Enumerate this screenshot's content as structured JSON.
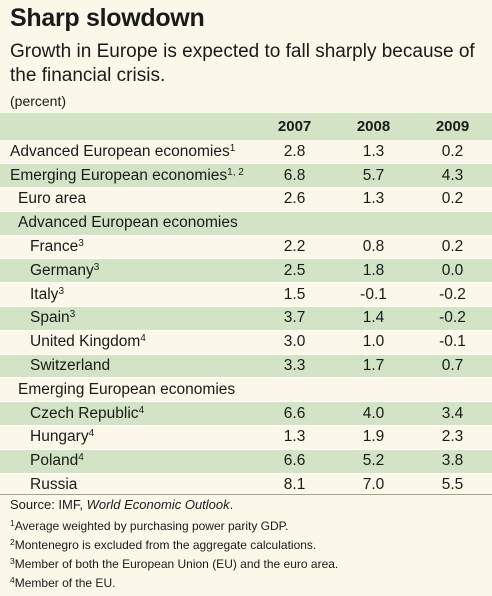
{
  "title": "Sharp slowdown",
  "subtitle": "Growth in Europe is expected to fall sharply because of the financial crisis.",
  "unit": "(percent)",
  "chart_data": {
    "type": "table",
    "columns": [
      "2007",
      "2008",
      "2009"
    ],
    "rows": [
      {
        "label": "Advanced European economies",
        "sup": "1",
        "values": [
          "2.8",
          "1.3",
          "0.2"
        ]
      },
      {
        "label": "Emerging European economies",
        "sup": "1, 2",
        "values": [
          "6.8",
          "5.7",
          "4.3"
        ]
      },
      {
        "label": "Euro area",
        "sup": "",
        "values": [
          "2.6",
          "1.3",
          "0.2"
        ]
      },
      {
        "label": "Advanced European economies",
        "sup": "",
        "values": [
          "",
          "",
          ""
        ]
      },
      {
        "label": "France",
        "sup": "3",
        "values": [
          "2.2",
          "0.8",
          "0.2"
        ]
      },
      {
        "label": "Germany",
        "sup": "3",
        "values": [
          "2.5",
          "1.8",
          "0.0"
        ]
      },
      {
        "label": "Italy",
        "sup": "3",
        "values": [
          "1.5",
          "-0.1",
          "-0.2"
        ]
      },
      {
        "label": "Spain",
        "sup": "3",
        "values": [
          "3.7",
          "1.4",
          "-0.2"
        ]
      },
      {
        "label": "United Kingdom",
        "sup": "4",
        "values": [
          "3.0",
          "1.0",
          "-0.1"
        ]
      },
      {
        "label": "Switzerland",
        "sup": "",
        "values": [
          "3.3",
          "1.7",
          "0.7"
        ]
      },
      {
        "label": "Emerging European economies",
        "sup": "",
        "values": [
          "",
          "",
          ""
        ]
      },
      {
        "label": "Czech Republic",
        "sup": "4",
        "values": [
          "6.6",
          "4.0",
          "3.4"
        ]
      },
      {
        "label": "Hungary",
        "sup": "4",
        "values": [
          "1.3",
          "1.9",
          "2.3"
        ]
      },
      {
        "label": "Poland",
        "sup": "4",
        "values": [
          "6.6",
          "5.2",
          "3.8"
        ]
      },
      {
        "label": "Russia",
        "sup": "",
        "values": [
          "8.1",
          "7.0",
          "5.5"
        ]
      }
    ]
  },
  "source": {
    "prefix": "Source: IMF, ",
    "publication": "World Economic Outlook",
    "suffix": "."
  },
  "footnotes": [
    {
      "mark": "1",
      "text": "Average weighted by purchasing power parity GDP."
    },
    {
      "mark": "2",
      "text": "Montenegro is excluded from the aggregate calculations."
    },
    {
      "mark": "3",
      "text": "Member of both the European Union (EU) and the euro area."
    },
    {
      "mark": "4",
      "text": "Member of the EU."
    }
  ],
  "colors": {
    "background": "#fbf8ea",
    "band": "#d2e3c6"
  }
}
